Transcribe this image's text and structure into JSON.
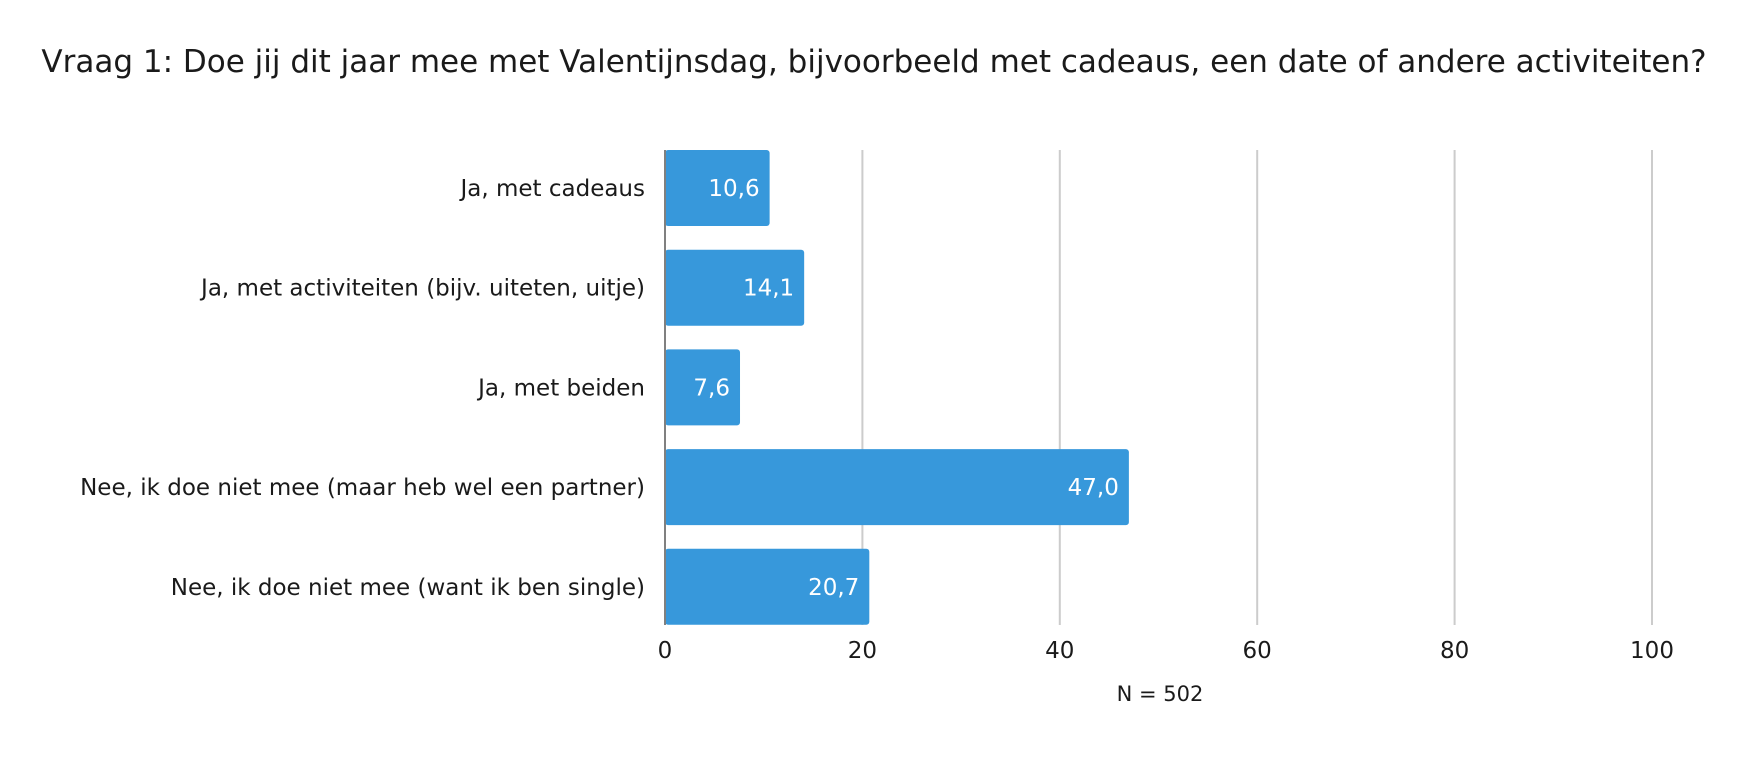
{
  "chart_data": {
    "type": "bar",
    "orientation": "horizontal",
    "title": "Vraag 1: Doe jij dit jaar mee met Valentijnsdag, bijvoorbeeld met cadeaus, een date of andere activiteiten?",
    "categories": [
      "Ja, met cadeaus",
      "Ja, met activiteiten (bijv. uiteten, uitje)",
      "Ja, met beiden",
      "Nee, ik doe niet mee (maar heb wel een partner)",
      "Nee, ik doe niet mee (want ik ben single)"
    ],
    "values": [
      10.6,
      14.1,
      7.6,
      47.0,
      20.7
    ],
    "value_labels": [
      "10,6",
      "14,1",
      "7,6",
      "47,0",
      "20,7"
    ],
    "xlim": [
      0,
      100
    ],
    "x_ticks": [
      "0",
      "20",
      "40",
      "60",
      "80",
      "100"
    ],
    "x_tick_values": [
      0,
      20,
      40,
      60,
      80,
      100
    ],
    "grid": "vertical",
    "note": "N = 502",
    "bar_color": "#3798db",
    "grid_color": "#cccccc",
    "label_color": "#ffffff"
  }
}
